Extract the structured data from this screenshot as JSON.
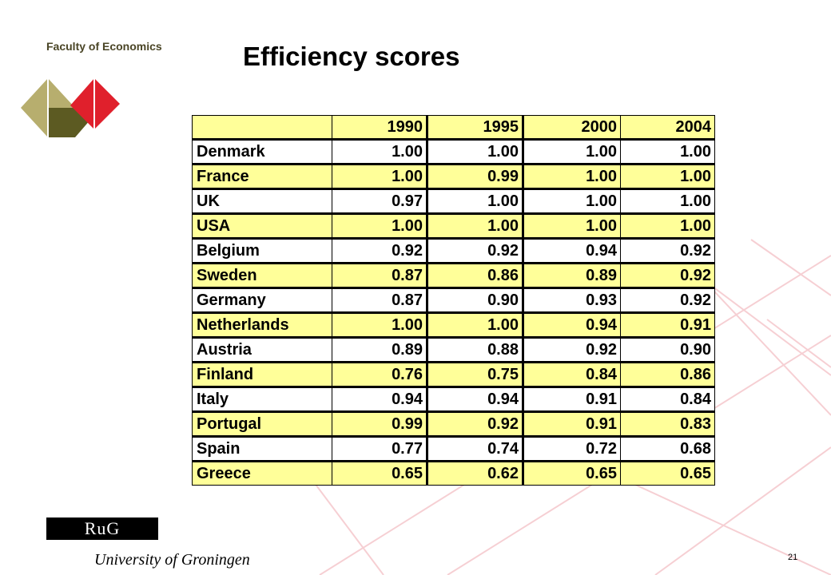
{
  "header": {
    "faculty": "Faculty of Economics",
    "title": "Efficiency scores"
  },
  "table": {
    "columns": [
      "",
      "1990",
      "1995",
      "2000",
      "2004"
    ],
    "rows": [
      {
        "country": "Denmark",
        "values": [
          "1.00",
          "1.00",
          "1.00",
          "1.00"
        ]
      },
      {
        "country": "France",
        "values": [
          "1.00",
          "0.99",
          "1.00",
          "1.00"
        ]
      },
      {
        "country": "UK",
        "values": [
          "0.97",
          "1.00",
          "1.00",
          "1.00"
        ]
      },
      {
        "country": "USA",
        "values": [
          "1.00",
          "1.00",
          "1.00",
          "1.00"
        ]
      },
      {
        "country": "Belgium",
        "values": [
          "0.92",
          "0.92",
          "0.94",
          "0.92"
        ]
      },
      {
        "country": "Sweden",
        "values": [
          "0.87",
          "0.86",
          "0.89",
          "0.92"
        ]
      },
      {
        "country": "Germany",
        "values": [
          "0.87",
          "0.90",
          "0.93",
          "0.92"
        ]
      },
      {
        "country": "Netherlands",
        "values": [
          "1.00",
          "1.00",
          "0.94",
          "0.91"
        ]
      },
      {
        "country": "Austria",
        "values": [
          "0.89",
          "0.88",
          "0.92",
          "0.90"
        ]
      },
      {
        "country": "Finland",
        "values": [
          "0.76",
          "0.75",
          "0.84",
          "0.86"
        ]
      },
      {
        "country": "Italy",
        "values": [
          "0.94",
          "0.94",
          "0.91",
          "0.84"
        ]
      },
      {
        "country": "Portugal",
        "values": [
          "0.99",
          "0.92",
          "0.91",
          "0.83"
        ]
      },
      {
        "country": "Spain",
        "values": [
          "0.77",
          "0.74",
          "0.72",
          "0.68"
        ]
      },
      {
        "country": "Greece",
        "values": [
          "0.65",
          "0.62",
          "0.65",
          "0.65"
        ]
      }
    ]
  },
  "footer": {
    "logo_text": "RuG",
    "university": "University of Groningen",
    "page_number": "21"
  },
  "colors": {
    "highlight_row": "#ffff99",
    "logo_olive": "#5c5a22",
    "logo_khaki": "#b7ae6e",
    "logo_red": "#e0202c",
    "bg_lines": "#f6cfd3"
  }
}
